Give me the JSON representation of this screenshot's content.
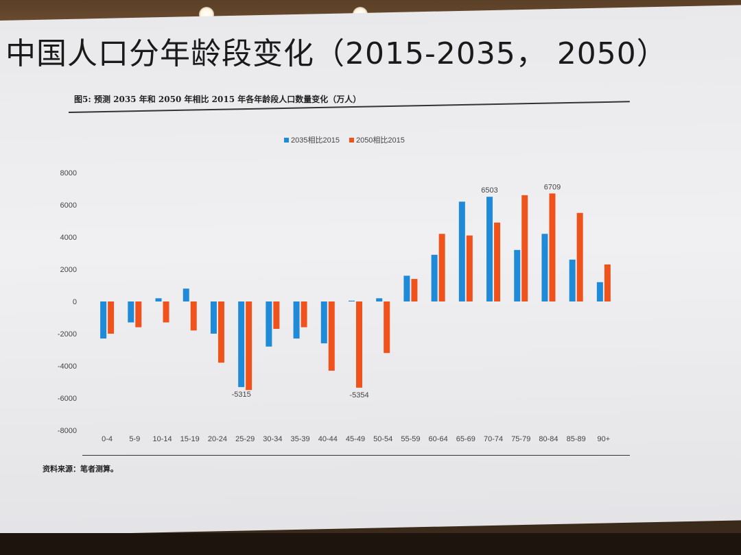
{
  "slide": {
    "title": "中国人口分年龄段变化（2015-2035， 2050）",
    "caption": "图5:  预测 2035 年和 2050 年相比 2015 年各年龄段人口数量变化（万人）",
    "source": "资料来源：笔者测算。"
  },
  "colors": {
    "series_2035": "#1f8ad8",
    "series_2050": "#f0521c",
    "axis_text": "#444444"
  },
  "chart_data": {
    "type": "bar",
    "categories": [
      "0-4",
      "5-9",
      "10-14",
      "15-19",
      "20-24",
      "25-29",
      "30-34",
      "35-39",
      "40-44",
      "45-49",
      "50-54",
      "55-59",
      "60-64",
      "65-69",
      "70-74",
      "75-79",
      "80-84",
      "85-89",
      "90+"
    ],
    "series": [
      {
        "name": "2035相比2015",
        "values": [
          -2300,
          -1300,
          200,
          800,
          -2000,
          -5315,
          -2800,
          -2300,
          -2600,
          50,
          200,
          1600,
          2900,
          6200,
          6503,
          3200,
          4200,
          2600,
          1200
        ]
      },
      {
        "name": "2050相比2015",
        "values": [
          -2000,
          -1600,
          -1300,
          -1800,
          -3800,
          -5500,
          -1700,
          -1600,
          -4300,
          -5354,
          -3200,
          1400,
          4200,
          4100,
          4900,
          6600,
          6709,
          5500,
          2300
        ]
      }
    ],
    "annotations": [
      {
        "category": "25-29",
        "series": "2035相比2015",
        "text": "-5315"
      },
      {
        "category": "45-49",
        "series": "2050相比2015",
        "text": "-5354"
      },
      {
        "category": "70-74",
        "series": "2035相比2015",
        "text": "6503"
      },
      {
        "category": "80-84",
        "series": "2050相比2015",
        "text": "6709"
      }
    ],
    "yticks": [
      8000,
      6000,
      4000,
      2000,
      0,
      -2000,
      -4000,
      -6000,
      -8000
    ],
    "ylim": [
      -8000,
      8000
    ],
    "legend_position": "top-center",
    "grid": false
  }
}
